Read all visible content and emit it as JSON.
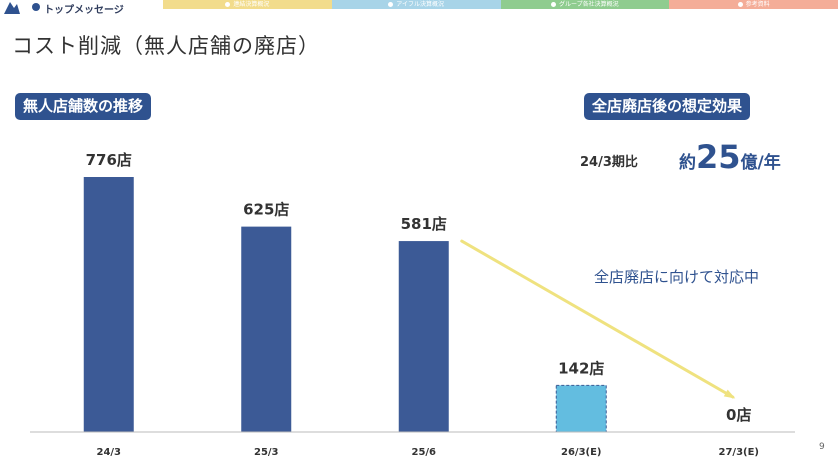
{
  "nav": {
    "active_tab": "トップメッセージ",
    "tabs": [
      {
        "label": "連結決算概況",
        "color": "#f2dc8c"
      },
      {
        "label": "アイフル決算概況",
        "color": "#a8d4e8"
      },
      {
        "label": "グループ各社決算概況",
        "color": "#8fcc8f"
      },
      {
        "label": "参考資料",
        "color": "#f4ad98"
      }
    ]
  },
  "page": {
    "title": "コスト削減（無人店舗の廃店）",
    "left_badge": "無人店舗数の推移",
    "right_badge": "全店廃店後の想定効果",
    "compare_label": "24/3期比",
    "effect_prefix": "約",
    "effect_value": "25",
    "effect_unit": "億/年",
    "note": "全店廃店に向けて対応中",
    "page_number": "9"
  },
  "colors": {
    "actual_bar": "#3c5a96",
    "estimate_bar": "#63bde0",
    "trend_line": "#efe27f",
    "badge": "#2f528f"
  },
  "chart_data": {
    "type": "bar",
    "title": "無人店舗数の推移",
    "categories": [
      "24/3",
      "25/3",
      "25/6",
      "26/3(E)",
      "27/3(E)"
    ],
    "values": [
      776,
      625,
      581,
      142,
      0
    ],
    "data_labels": [
      "776店",
      "625店",
      "581店",
      "142店",
      "0店"
    ],
    "estimated": [
      false,
      false,
      false,
      true,
      true
    ],
    "xlabel": "",
    "ylabel": "",
    "ylim": [
      0,
      800
    ],
    "grid": false,
    "trend_arrow": {
      "from_category": "25/6",
      "to_category": "27/3(E)"
    }
  }
}
